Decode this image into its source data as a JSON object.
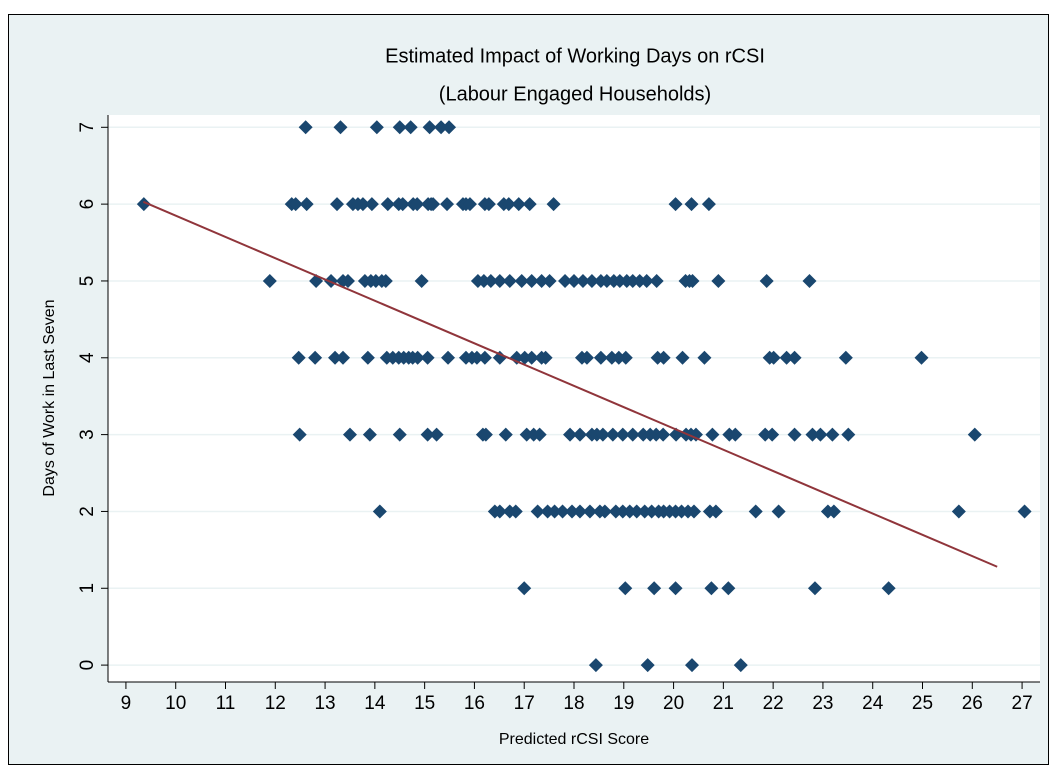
{
  "chart_data": {
    "type": "scatter",
    "title": "Estimated Impact of Working Days on rCSI",
    "subtitle": "(Labour Engaged Households)",
    "x_label": "Predicted rCSI Score",
    "y_label": "Days of Work in Last Seven",
    "color": "#1a476f",
    "grid": true,
    "xlim": [
      8.64,
      27.36
    ],
    "ylim": [
      -0.22,
      7.16
    ],
    "xticks": [
      9,
      10,
      11,
      12,
      13,
      14,
      15,
      16,
      17,
      18,
      19,
      20,
      21,
      22,
      23,
      24,
      25,
      26,
      27
    ],
    "yticks": [
      0,
      1,
      2,
      3,
      4,
      5,
      6,
      7
    ],
    "x": [
      12.61,
      13.31,
      14.04,
      14.5,
      14.72,
      15.1,
      15.33,
      15.49,
      9.36,
      12.33,
      12.41,
      12.63,
      13.24,
      13.56,
      13.66,
      13.76,
      13.94,
      14.26,
      14.48,
      14.56,
      14.77,
      14.85,
      15.07,
      15.13,
      15.17,
      15.45,
      15.77,
      15.83,
      15.91,
      16.21,
      16.29,
      16.59,
      16.69,
      16.89,
      17.11,
      17.59,
      20.04,
      20.36,
      20.71,
      11.89,
      12.82,
      13.12,
      13.36,
      13.46,
      13.8,
      13.92,
      14.02,
      14.14,
      14.22,
      14.94,
      16.07,
      16.19,
      16.33,
      16.51,
      16.71,
      16.95,
      17.15,
      17.35,
      17.51,
      17.82,
      18.0,
      18.18,
      18.36,
      18.54,
      18.66,
      18.8,
      18.92,
      19.06,
      19.18,
      19.32,
      19.46,
      19.66,
      20.24,
      20.32,
      20.38,
      20.9,
      21.87,
      22.73,
      12.47,
      12.8,
      13.2,
      13.36,
      13.86,
      14.24,
      14.36,
      14.48,
      14.58,
      14.68,
      14.76,
      14.86,
      15.06,
      15.47,
      15.83,
      15.95,
      16.05,
      16.21,
      16.51,
      16.85,
      17.01,
      17.15,
      17.35,
      17.43,
      18.16,
      18.26,
      18.54,
      18.76,
      18.9,
      19.04,
      19.68,
      19.8,
      20.18,
      20.62,
      21.93,
      22.01,
      22.27,
      22.43,
      23.46,
      24.98,
      12.49,
      13.5,
      13.9,
      14.5,
      15.06,
      15.24,
      16.17,
      16.23,
      16.63,
      17.05,
      17.19,
      17.31,
      17.92,
      18.12,
      18.36,
      18.46,
      18.58,
      18.78,
      18.98,
      19.18,
      19.39,
      19.53,
      19.65,
      19.79,
      20.05,
      20.25,
      20.35,
      20.45,
      20.78,
      21.12,
      21.24,
      21.84,
      21.98,
      22.43,
      22.79,
      22.95,
      23.19,
      23.51,
      26.05,
      14.1,
      16.41,
      16.51,
      16.71,
      16.83,
      17.27,
      17.47,
      17.61,
      17.77,
      17.96,
      18.12,
      18.32,
      18.52,
      18.62,
      18.84,
      18.98,
      19.12,
      19.26,
      19.42,
      19.56,
      19.7,
      19.8,
      19.92,
      20.04,
      20.16,
      20.29,
      20.41,
      20.73,
      20.85,
      21.65,
      22.11,
      23.1,
      23.22,
      25.73,
      27.05,
      17.0,
      19.03,
      19.61,
      20.04,
      20.76,
      21.1,
      22.84,
      24.32,
      18.44,
      19.48,
      20.37,
      21.35
    ],
    "values": [
      7,
      7,
      7,
      7,
      7,
      7,
      7,
      7,
      6,
      6,
      6,
      6,
      6,
      6,
      6,
      6,
      6,
      6,
      6,
      6,
      6,
      6,
      6,
      6,
      6,
      6,
      6,
      6,
      6,
      6,
      6,
      6,
      6,
      6,
      6,
      6,
      6,
      6,
      6,
      5,
      5,
      5,
      5,
      5,
      5,
      5,
      5,
      5,
      5,
      5,
      5,
      5,
      5,
      5,
      5,
      5,
      5,
      5,
      5,
      5,
      5,
      5,
      5,
      5,
      5,
      5,
      5,
      5,
      5,
      5,
      5,
      5,
      5,
      5,
      5,
      5,
      5,
      5,
      4,
      4,
      4,
      4,
      4,
      4,
      4,
      4,
      4,
      4,
      4,
      4,
      4,
      4,
      4,
      4,
      4,
      4,
      4,
      4,
      4,
      4,
      4,
      4,
      4,
      4,
      4,
      4,
      4,
      4,
      4,
      4,
      4,
      4,
      4,
      4,
      4,
      4,
      4,
      4,
      3,
      3,
      3,
      3,
      3,
      3,
      3,
      3,
      3,
      3,
      3,
      3,
      3,
      3,
      3,
      3,
      3,
      3,
      3,
      3,
      3,
      3,
      3,
      3,
      3,
      3,
      3,
      3,
      3,
      3,
      3,
      3,
      3,
      3,
      3,
      3,
      3,
      3,
      3,
      2,
      2,
      2,
      2,
      2,
      2,
      2,
      2,
      2,
      2,
      2,
      2,
      2,
      2,
      2,
      2,
      2,
      2,
      2,
      2,
      2,
      2,
      2,
      2,
      2,
      2,
      2,
      2,
      2,
      2,
      2,
      2,
      2,
      2,
      2,
      1,
      1,
      1,
      1,
      1,
      1,
      1,
      1,
      0,
      0,
      0,
      0
    ],
    "fit_line": {
      "color": "#90353b",
      "x": [
        9.35,
        26.5
      ],
      "values": [
        6.03,
        1.28
      ]
    }
  }
}
